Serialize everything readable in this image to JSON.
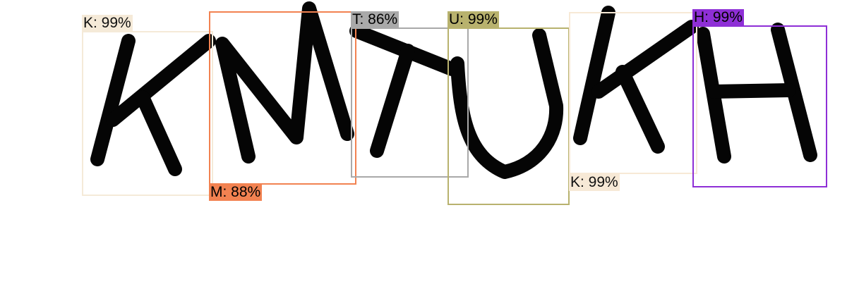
{
  "detections": [
    {
      "text": "K: 99%",
      "color": "#f5ead8"
    },
    {
      "text": "M: 88%",
      "color": "#f28251"
    },
    {
      "text": "T: 86%",
      "color": "#a9a9a9"
    },
    {
      "text": "U: 99%",
      "color": "#b8b26e"
    },
    {
      "text": "K: 99%",
      "color": "#f7e9d6"
    },
    {
      "text": "H: 99%",
      "color": "#8e2fd6"
    }
  ]
}
